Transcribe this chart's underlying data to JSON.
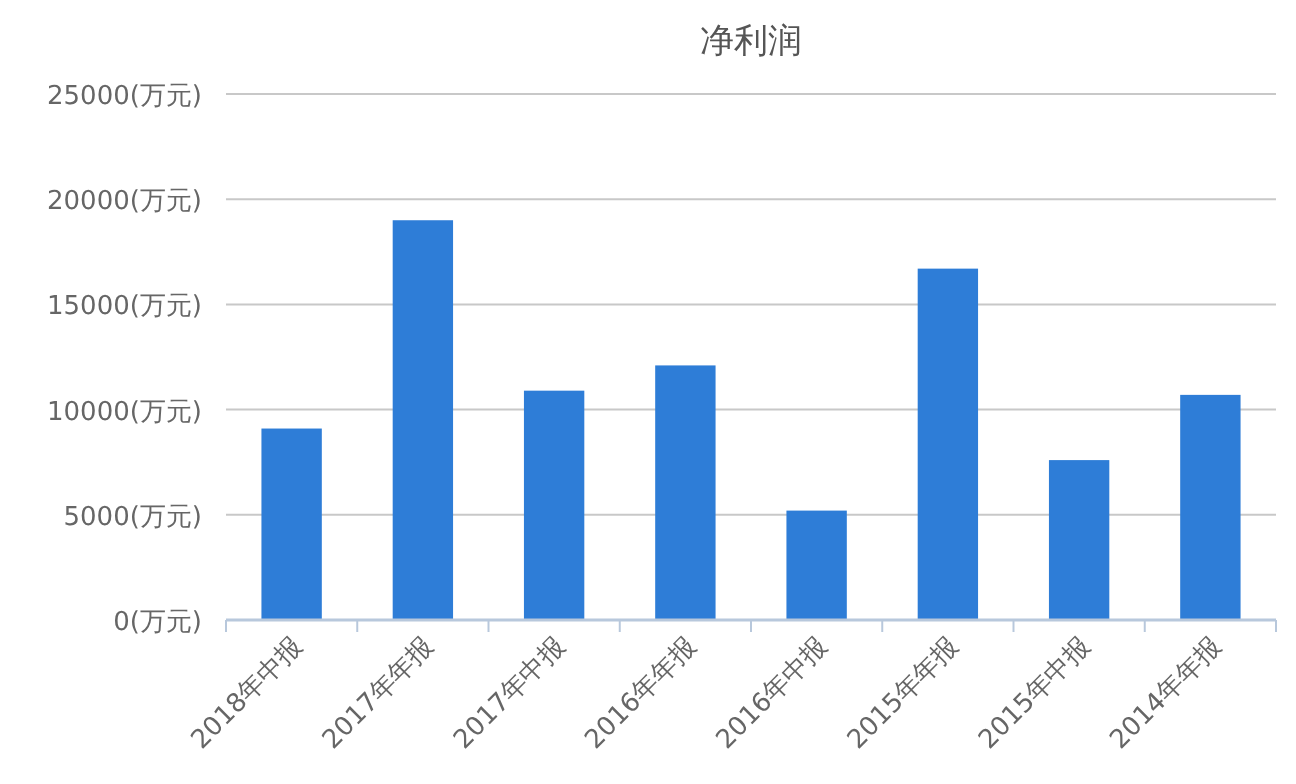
{
  "chart_data": {
    "type": "bar",
    "title": "净利润",
    "categories": [
      "2018年中报",
      "2017年年报",
      "2017年中报",
      "2016年年报",
      "2016年中报",
      "2015年年报",
      "2015年中报",
      "2014年年报"
    ],
    "values": [
      9100,
      19000,
      10900,
      12100,
      5200,
      16700,
      7600,
      10700
    ],
    "color": "#2e7dd7",
    "ylim": [
      0,
      25000
    ],
    "yticks": [
      {
        "value": 0,
        "label": "0(万元)"
      },
      {
        "value": 5000,
        "label": "5000(万元)"
      },
      {
        "value": 10000,
        "label": "10000(万元)"
      },
      {
        "value": 15000,
        "label": "15000(万元)"
      },
      {
        "value": 20000,
        "label": "20000(万元)"
      },
      {
        "value": 25000,
        "label": "25000(万元)"
      }
    ],
    "grid": "y"
  }
}
